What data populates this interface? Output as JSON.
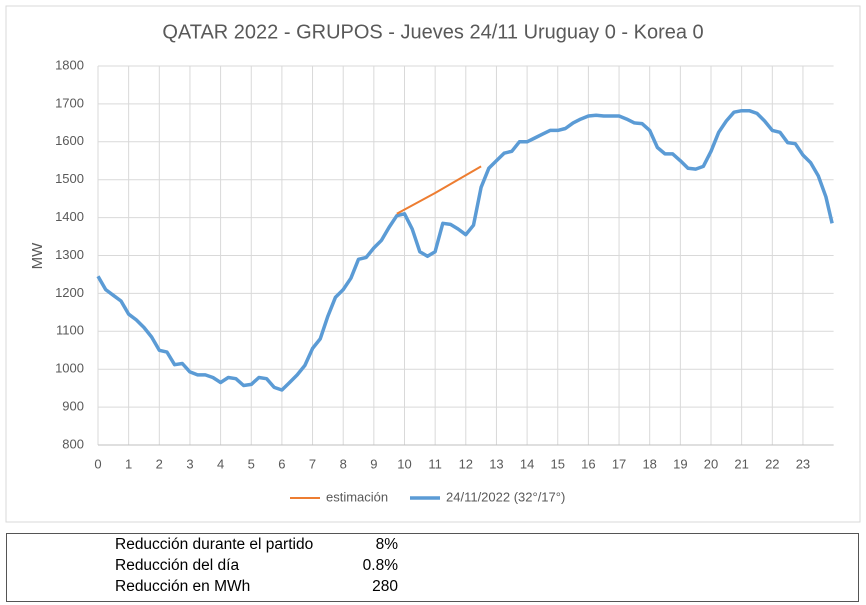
{
  "chart_data": {
    "type": "line",
    "title": "QATAR 2022 - GRUPOS - Jueves 24/11 Uruguay 0 - Korea 0",
    "ylabel": "MW",
    "xlim": [
      0,
      24
    ],
    "xticks": [
      0,
      1,
      2,
      3,
      4,
      5,
      6,
      7,
      8,
      9,
      10,
      11,
      12,
      13,
      14,
      15,
      16,
      17,
      18,
      19,
      20,
      21,
      22,
      23
    ],
    "ylim": [
      800,
      1800
    ],
    "yticks": [
      800,
      900,
      1000,
      1100,
      1200,
      1300,
      1400,
      1500,
      1600,
      1700,
      1800
    ],
    "grid": true,
    "legend": "bottom",
    "series": [
      {
        "name": "estimación",
        "color": "#ed7d31",
        "x": [
          9.75,
          11,
          12.5
        ],
        "values": [
          1410,
          1465,
          1535
        ]
      },
      {
        "name": "24/11/2022 (32°/17°)",
        "color": "#5b9bd5",
        "x": [
          0,
          0.25,
          0.5,
          0.75,
          1,
          1.25,
          1.5,
          1.75,
          2,
          2.25,
          2.5,
          2.75,
          3,
          3.25,
          3.5,
          3.75,
          4,
          4.25,
          4.5,
          4.75,
          5,
          5.25,
          5.5,
          5.75,
          6,
          6.25,
          6.5,
          6.75,
          7,
          7.25,
          7.5,
          7.75,
          8,
          8.25,
          8.5,
          8.75,
          9,
          9.25,
          9.5,
          9.75,
          10,
          10.25,
          10.5,
          10.75,
          11,
          11.25,
          11.5,
          11.75,
          12,
          12.25,
          12.5,
          12.75,
          13,
          13.25,
          13.5,
          13.75,
          14,
          14.25,
          14.5,
          14.75,
          15,
          15.25,
          15.5,
          15.75,
          16,
          16.25,
          16.5,
          16.75,
          17,
          17.25,
          17.5,
          17.75,
          18,
          18.25,
          18.5,
          18.75,
          19,
          19.25,
          19.5,
          19.75,
          20,
          20.25,
          20.5,
          20.75,
          21,
          21.25,
          21.5,
          21.75,
          22,
          22.25,
          22.5,
          22.75,
          23,
          23.25,
          23.5,
          23.75,
          23.95
        ],
        "values": [
          1245,
          1210,
          1195,
          1180,
          1145,
          1130,
          1110,
          1085,
          1050,
          1045,
          1012,
          1015,
          993,
          985,
          985,
          978,
          965,
          978,
          975,
          957,
          960,
          978,
          975,
          952,
          945,
          965,
          985,
          1010,
          1055,
          1080,
          1140,
          1190,
          1210,
          1240,
          1290,
          1295,
          1320,
          1340,
          1375,
          1405,
          1410,
          1370,
          1310,
          1298,
          1310,
          1385,
          1382,
          1370,
          1355,
          1380,
          1480,
          1530,
          1550,
          1570,
          1575,
          1600,
          1600,
          1610,
          1620,
          1630,
          1630,
          1635,
          1650,
          1660,
          1668,
          1670,
          1668,
          1668,
          1668,
          1660,
          1650,
          1648,
          1630,
          1585,
          1568,
          1568,
          1550,
          1530,
          1528,
          1535,
          1575,
          1625,
          1655,
          1678,
          1682,
          1682,
          1675,
          1655,
          1630,
          1625,
          1598,
          1595,
          1565,
          1545,
          1510,
          1455,
          1385
        ]
      }
    ]
  },
  "table": {
    "rows": [
      [
        "Reducción durante el partido",
        "8%"
      ],
      [
        "Reducción del día",
        "0.8%"
      ],
      [
        "Reducción en MWh",
        "280"
      ]
    ]
  }
}
